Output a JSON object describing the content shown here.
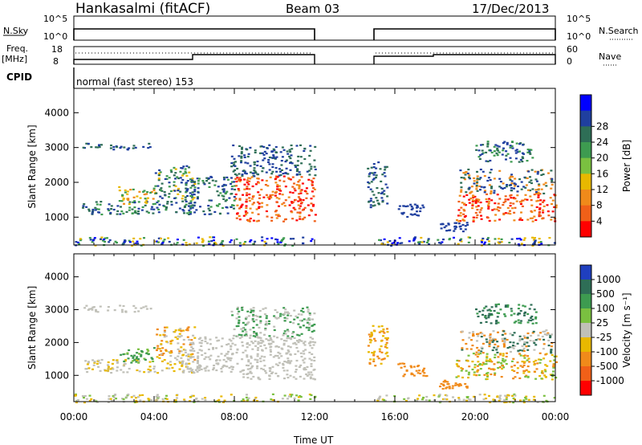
{
  "header": {
    "station": "Hankasalmi (fitACF)",
    "beam": "Beam 03",
    "date": "17/Dec/2013"
  },
  "panels": {
    "nsky_label": "N.Sky",
    "nsky_ticks": [
      "10^5",
      "10^0"
    ],
    "nsearch_label": "N.Search",
    "nsearch_ticks": [
      "10^5",
      "10^0"
    ],
    "freq_label": "Freq.",
    "freq_unit": "[MHz]",
    "freq_ticks": [
      "18",
      "8"
    ],
    "nave_label": "Nave",
    "nave_ticks": [
      "60",
      "0"
    ],
    "cpid_label": "CPID",
    "cpid_text": "normal (fast stereo) 153"
  },
  "chart_data": [
    {
      "type": "heatmap",
      "title": "",
      "ylabel": "Slant Range [km]",
      "xlabel": "",
      "ylim": [
        200,
        4700
      ],
      "yticks": [
        "1000",
        "2000",
        "3000",
        "4000"
      ],
      "xticks": [
        "00:00",
        "04:00",
        "08:00",
        "12:00",
        "16:00",
        "20:00",
        "00:00"
      ],
      "colorbar": {
        "label": "Power [dB]",
        "ticks": [
          "4",
          "8",
          "12",
          "16",
          "20",
          "24",
          "28"
        ],
        "colors": [
          "#0000ff",
          "#1f3f9f",
          "#2e6e56",
          "#3d9b50",
          "#7ac040",
          "#e8b800",
          "#f08a1a",
          "#f06018",
          "#ff0000"
        ]
      },
      "data_gaps_hours": [
        [
          12,
          15
        ]
      ]
    },
    {
      "type": "heatmap",
      "title": "",
      "ylabel": "Slant Range [km]",
      "xlabel": "Time UT",
      "ylim": [
        200,
        4700
      ],
      "yticks": [
        "1000",
        "2000",
        "3000",
        "4000"
      ],
      "xticks": [
        "00:00",
        "04:00",
        "08:00",
        "12:00",
        "16:00",
        "20:00",
        "00:00"
      ],
      "colorbar": {
        "label": "Velocity [m s⁻¹]",
        "ticks": [
          "1000",
          "500",
          "100",
          "25",
          "-25",
          "-100",
          "-500",
          "-1000"
        ],
        "colors": [
          "#1f3fbf",
          "#2e6e56",
          "#3d9b50",
          "#7ac040",
          "#c0c0b8",
          "#e8b800",
          "#f08a1a",
          "#f06018",
          "#ff0000"
        ]
      },
      "data_gaps_hours": [
        [
          12,
          15
        ]
      ]
    }
  ]
}
